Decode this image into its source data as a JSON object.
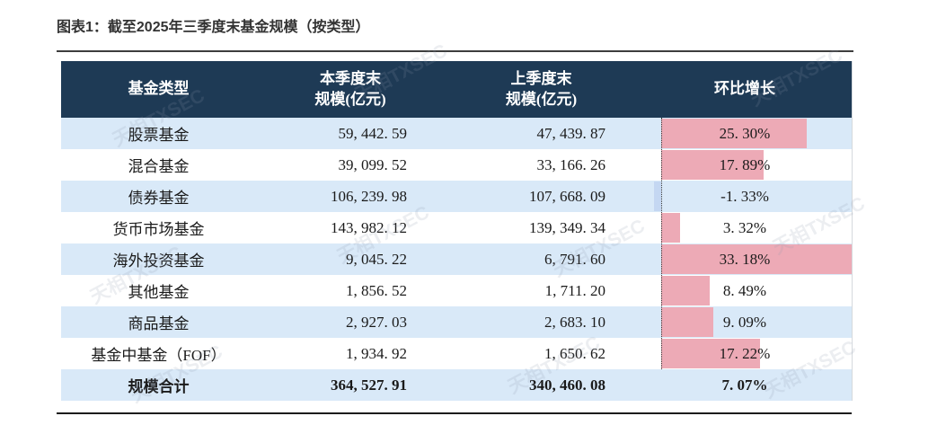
{
  "page": {
    "title": "图表1：截至2025年三季度末基金规模（按类型）"
  },
  "watermark": {
    "text": "天相TXSEC"
  },
  "colors": {
    "header_bg": "#1e3a55",
    "header_text": "#ffffff",
    "row_stripe": "#d9e9f8",
    "bar_positive": "#edaab6",
    "bar_negative": "#c4d7f2",
    "rule": "#1c1c1c"
  },
  "table": {
    "headers": {
      "fund_type": "基金类型",
      "current_line1": "本季度末",
      "current_line2": "规模(亿元)",
      "previous_line1": "上季度末",
      "previous_line2": "规模(亿元)",
      "growth": "环比增长"
    },
    "rows": [
      {
        "fund_type": "股票基金",
        "current": "59, 442. 59",
        "previous": "47, 439. 87",
        "growth": "25. 30%",
        "growth_pct": 25.3,
        "bar": true,
        "bold": false
      },
      {
        "fund_type": "混合基金",
        "current": "39, 099. 52",
        "previous": "33, 166. 26",
        "growth": "17. 89%",
        "growth_pct": 17.89,
        "bar": true,
        "bold": false
      },
      {
        "fund_type": "债券基金",
        "current": "106, 239. 98",
        "previous": "107, 668. 09",
        "growth": "-1. 33%",
        "growth_pct": -1.33,
        "bar": true,
        "bold": false
      },
      {
        "fund_type": "货币市场基金",
        "current": "143, 982. 12",
        "previous": "139, 349. 34",
        "growth": "3. 32%",
        "growth_pct": 3.32,
        "bar": true,
        "bold": false
      },
      {
        "fund_type": "海外投资基金",
        "current": "9, 045. 22",
        "previous": "6, 791. 60",
        "growth": "33. 18%",
        "growth_pct": 33.18,
        "bar": true,
        "bold": false
      },
      {
        "fund_type": "其他基金",
        "current": "1, 856. 52",
        "previous": "1, 711. 20",
        "growth": "8. 49%",
        "growth_pct": 8.49,
        "bar": true,
        "bold": false
      },
      {
        "fund_type": "商品基金",
        "current": "2, 927. 03",
        "previous": "2, 683. 10",
        "growth": "9. 09%",
        "growth_pct": 9.09,
        "bar": true,
        "bold": false
      },
      {
        "fund_type": "基金中基金（FOF）",
        "current": "1, 934. 92",
        "previous": "1, 650. 62",
        "growth": "17. 22%",
        "growth_pct": 17.22,
        "bar": true,
        "bold": false
      },
      {
        "fund_type": "规模合计",
        "current": "364, 527. 91",
        "previous": "340, 460. 08",
        "growth": "7. 07%",
        "growth_pct": 7.07,
        "bar": false,
        "bold": true
      }
    ]
  },
  "chart_data": {
    "type": "table",
    "title": "截至2025年三季度末基金规模（按类型）",
    "categories": [
      "股票基金",
      "混合基金",
      "债券基金",
      "货币市场基金",
      "海外投资基金",
      "其他基金",
      "商品基金",
      "基金中基金（FOF）"
    ],
    "series": [
      {
        "name": "本季度末规模(亿元)",
        "values": [
          59442.59,
          39099.52,
          106239.98,
          143982.12,
          9045.22,
          1856.52,
          2927.03,
          1934.92
        ]
      },
      {
        "name": "上季度末规模(亿元)",
        "values": [
          47439.87,
          33166.26,
          107668.09,
          139349.34,
          6791.6,
          1711.2,
          2683.1,
          1650.62
        ]
      },
      {
        "name": "环比增长(%)",
        "values": [
          25.3,
          17.89,
          -1.33,
          3.32,
          33.18,
          8.49,
          9.09,
          17.22
        ]
      }
    ],
    "total_row": {
      "name": "规模合计",
      "current": 364527.91,
      "previous": 340460.08,
      "growth_pct": 7.07
    },
    "databar": {
      "column": "环比增长",
      "axis_max_pct": 33.18,
      "positive_color": "#edaab6",
      "negative_color": "#c4d7f2",
      "zero_line": "dotted"
    }
  }
}
